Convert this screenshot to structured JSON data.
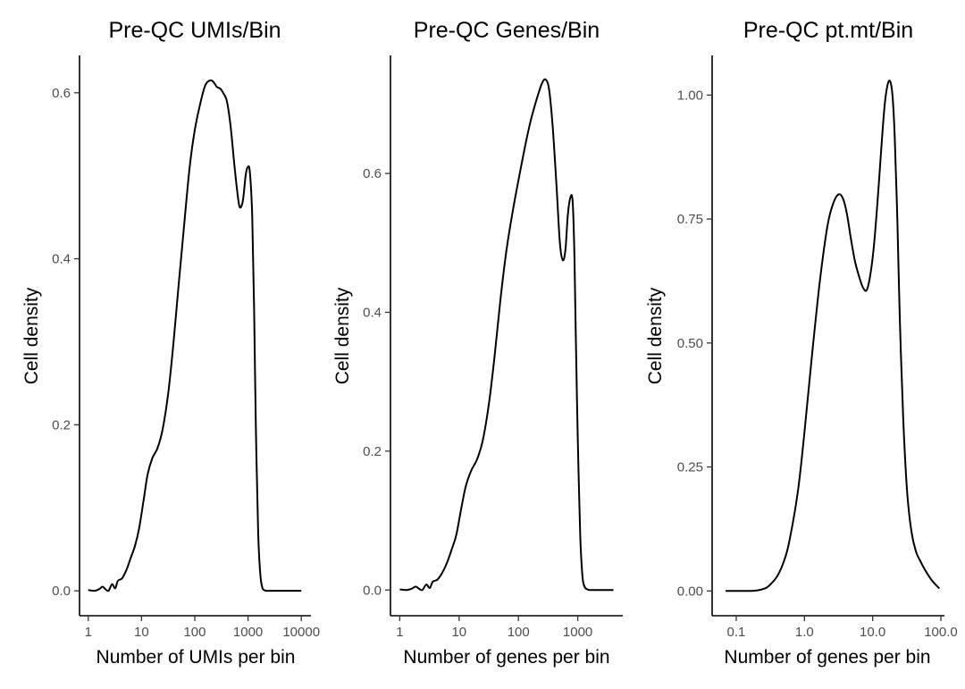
{
  "chart_data": [
    {
      "type": "line",
      "title": "Pre-QC UMIs/Bin",
      "xlabel": "Number of UMIs per bin",
      "ylabel": "Cell density",
      "xscale": "log10",
      "xlim": [
        0.8,
        13000
      ],
      "ylim": [
        -0.03,
        0.645
      ],
      "x_ticks": [
        {
          "value": 1,
          "label": "1"
        },
        {
          "value": 10,
          "label": "10"
        },
        {
          "value": 100,
          "label": "100"
        },
        {
          "value": 1000,
          "label": "1000"
        },
        {
          "value": 10000,
          "label": "10000"
        }
      ],
      "y_ticks": [
        {
          "value": 0,
          "label": "0.0"
        },
        {
          "value": 0.2,
          "label": "0.2"
        },
        {
          "value": 0.4,
          "label": "0.4"
        },
        {
          "value": 0.6,
          "label": "0.6"
        }
      ],
      "grid": false,
      "series": [
        {
          "name": "density",
          "x": [
            1,
            1.3,
            1.6,
            1.85,
            2.1,
            2.4,
            2.8,
            3.2,
            3.6,
            4.3,
            5.2,
            6.3,
            7.6,
            9,
            11,
            13,
            16,
            20,
            25,
            32,
            40,
            50,
            63,
            80,
            100,
            130,
            160,
            200,
            230,
            260,
            300,
            340,
            400,
            470,
            550,
            630,
            700,
            800,
            900,
            980,
            1080,
            1200,
            1300,
            1400,
            1550,
            1700,
            1850,
            2000,
            2200,
            2500,
            3000,
            4000,
            5000,
            7000,
            10000
          ],
          "y": [
            0.001,
            0.0,
            0.002,
            0.005,
            0.002,
            0.0,
            0.008,
            0.003,
            0.012,
            0.015,
            0.025,
            0.04,
            0.055,
            0.075,
            0.11,
            0.14,
            0.16,
            0.172,
            0.195,
            0.24,
            0.3,
            0.37,
            0.44,
            0.51,
            0.555,
            0.59,
            0.61,
            0.615,
            0.612,
            0.607,
            0.605,
            0.6,
            0.59,
            0.56,
            0.515,
            0.48,
            0.462,
            0.47,
            0.5,
            0.51,
            0.505,
            0.45,
            0.34,
            0.2,
            0.07,
            0.02,
            0.004,
            0.001,
            0.0,
            0.0,
            0.0,
            0.0,
            0.0,
            0.0,
            0.0
          ]
        }
      ]
    },
    {
      "type": "line",
      "title": "Pre-QC Genes/Bin",
      "xlabel": "Number of genes per bin",
      "ylabel": "Cell density",
      "xscale": "log10",
      "xlim": [
        0.8,
        5000
      ],
      "ylim": [
        -0.037,
        0.77
      ],
      "x_ticks": [
        {
          "value": 1,
          "label": "1"
        },
        {
          "value": 10,
          "label": "10"
        },
        {
          "value": 100,
          "label": "100"
        },
        {
          "value": 1000,
          "label": "1000"
        }
      ],
      "y_ticks": [
        {
          "value": 0,
          "label": "0.0"
        },
        {
          "value": 0.2,
          "label": "0.2"
        },
        {
          "value": 0.4,
          "label": "0.4"
        },
        {
          "value": 0.6,
          "label": "0.6"
        }
      ],
      "grid": false,
      "series": [
        {
          "name": "density",
          "x": [
            1,
            1.3,
            1.6,
            1.85,
            2.1,
            2.4,
            2.8,
            3.2,
            3.6,
            4.3,
            5.2,
            6.3,
            7.6,
            9,
            11,
            13,
            16,
            20,
            25,
            32,
            40,
            50,
            63,
            80,
            100,
            130,
            160,
            200,
            250,
            290,
            330,
            380,
            440,
            500,
            560,
            620,
            680,
            750,
            820,
            880,
            930,
            1000,
            1100,
            1200,
            1300,
            1450,
            1600,
            1800,
            2200,
            3000,
            4000
          ],
          "y": [
            0.001,
            0.0,
            0.002,
            0.005,
            0.002,
            0.0,
            0.008,
            0.003,
            0.012,
            0.015,
            0.025,
            0.04,
            0.06,
            0.08,
            0.12,
            0.15,
            0.172,
            0.188,
            0.215,
            0.27,
            0.34,
            0.42,
            0.49,
            0.545,
            0.59,
            0.64,
            0.675,
            0.705,
            0.73,
            0.735,
            0.72,
            0.665,
            0.58,
            0.5,
            0.475,
            0.49,
            0.54,
            0.565,
            0.56,
            0.48,
            0.36,
            0.22,
            0.08,
            0.02,
            0.005,
            0.001,
            0.0,
            0.0,
            0.0,
            0.0,
            0.0
          ]
        }
      ]
    },
    {
      "type": "line",
      "title": "Pre-QC pt.mt/Bin",
      "xlabel": "Number of genes per bin",
      "ylabel": "Cell density",
      "xscale": "log10",
      "xlim": [
        0.05,
        100
      ],
      "ylim": [
        -0.05,
        1.08
      ],
      "x_ticks": [
        {
          "value": 0.1,
          "label": "0.1"
        },
        {
          "value": 1,
          "label": "1.0"
        },
        {
          "value": 10,
          "label": "10.0"
        },
        {
          "value": 100,
          "label": "100.0"
        }
      ],
      "y_ticks": [
        {
          "value": 0,
          "label": "0.00"
        },
        {
          "value": 0.25,
          "label": "0.25"
        },
        {
          "value": 0.5,
          "label": "0.50"
        },
        {
          "value": 0.75,
          "label": "0.75"
        },
        {
          "value": 1,
          "label": "1.00"
        }
      ],
      "grid": false,
      "series": [
        {
          "name": "density",
          "x": [
            0.07,
            0.1,
            0.15,
            0.2,
            0.25,
            0.3,
            0.4,
            0.5,
            0.6,
            0.8,
            1.0,
            1.3,
            1.7,
            2.2,
            2.7,
            3.2,
            3.7,
            4.2,
            4.8,
            5.5,
            6.3,
            7.2,
            8.2,
            9.3,
            10.5,
            12,
            13.5,
            15,
            16.5,
            18,
            19.5,
            21,
            23,
            25,
            28,
            32,
            37,
            43,
            50,
            60,
            75,
            95
          ],
          "y": [
            0.0,
            0.0,
            0.0,
            0.001,
            0.004,
            0.01,
            0.03,
            0.06,
            0.1,
            0.2,
            0.32,
            0.48,
            0.63,
            0.74,
            0.785,
            0.8,
            0.79,
            0.76,
            0.71,
            0.665,
            0.635,
            0.612,
            0.607,
            0.64,
            0.7,
            0.8,
            0.9,
            0.98,
            1.02,
            1.028,
            1.0,
            0.92,
            0.75,
            0.55,
            0.35,
            0.2,
            0.12,
            0.08,
            0.06,
            0.04,
            0.02,
            0.005
          ]
        }
      ]
    }
  ]
}
